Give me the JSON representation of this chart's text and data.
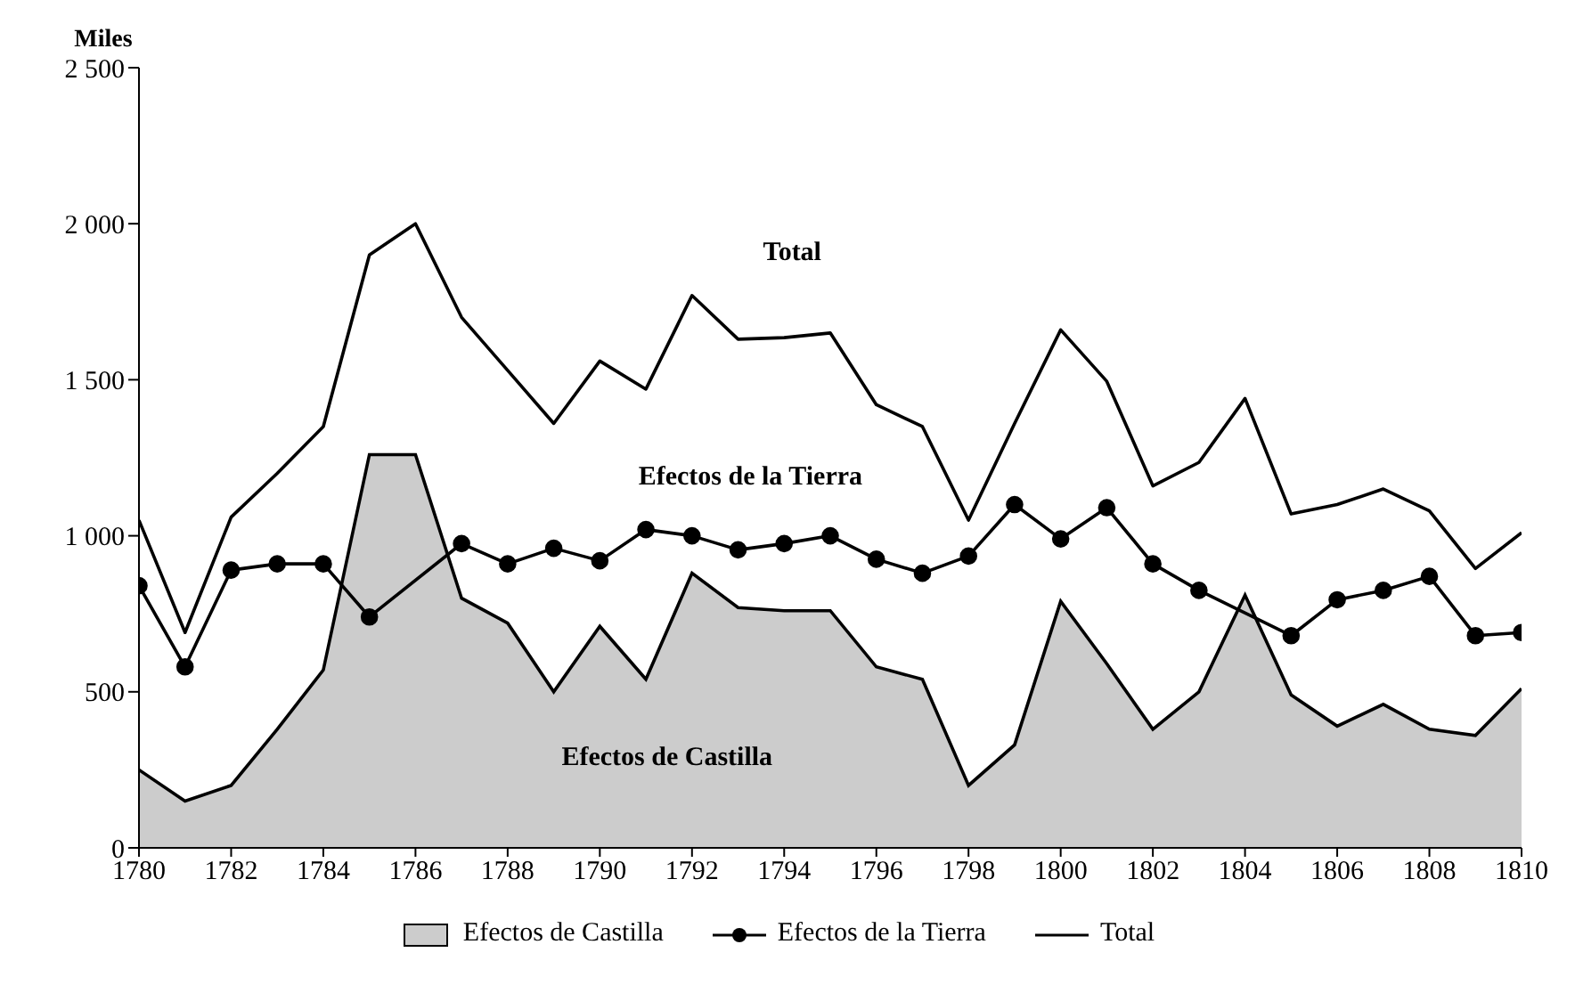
{
  "chart_data": {
    "type": "line",
    "ylabel": "Miles",
    "x": [
      1780,
      1781,
      1782,
      1783,
      1784,
      1785,
      1786,
      1787,
      1788,
      1789,
      1790,
      1791,
      1792,
      1793,
      1794,
      1795,
      1796,
      1797,
      1798,
      1799,
      1800,
      1801,
      1802,
      1803,
      1804,
      1805,
      1806,
      1807,
      1808,
      1809,
      1810
    ],
    "series": [
      {
        "name": "Efectos de Castilla",
        "type": "area",
        "color": "#cccccc",
        "marker": "none",
        "values": [
          250,
          150,
          200,
          380,
          570,
          1260,
          1260,
          800,
          720,
          500,
          710,
          540,
          880,
          770,
          760,
          760,
          580,
          540,
          200,
          330,
          790,
          590,
          380,
          500,
          810,
          490,
          390,
          460,
          380,
          360,
          510
        ]
      },
      {
        "name": "Efectos de la Tierra",
        "color": "#000000",
        "marker": "circle",
        "values": [
          840,
          580,
          890,
          910,
          910,
          740,
          null,
          975,
          910,
          960,
          920,
          1020,
          1000,
          955,
          975,
          1000,
          925,
          880,
          935,
          1100,
          990,
          1090,
          910,
          825,
          null,
          680,
          795,
          825,
          870,
          680,
          690
        ]
      },
      {
        "name": "Total",
        "color": "#000000",
        "marker": "none",
        "values": [
          1050,
          690,
          1060,
          1200,
          1350,
          1900,
          2000,
          1700,
          1530,
          1360,
          1560,
          1470,
          1770,
          1630,
          1635,
          1650,
          1420,
          1350,
          1050,
          1360,
          1660,
          1495,
          1160,
          1235,
          1440,
          1070,
          1100,
          1150,
          1080,
          895,
          1010
        ]
      }
    ],
    "xlim": [
      1780,
      1810
    ],
    "xticks": [
      1780,
      1782,
      1784,
      1786,
      1788,
      1790,
      1792,
      1794,
      1796,
      1798,
      1800,
      1802,
      1804,
      1806,
      1808,
      1810
    ],
    "ylim": [
      0,
      2500
    ],
    "yticks": [
      0,
      500,
      {
        "value": 1000,
        "label": "1 000"
      },
      {
        "value": 1500,
        "label": "1 500"
      },
      {
        "value": 2000,
        "label": "2 000"
      },
      {
        "value": 2500,
        "label": "2 500"
      }
    ],
    "annotations": [
      "Total",
      "Efectos de la Tierra",
      "Efectos de Castilla"
    ],
    "grid": false,
    "legend": "bottom"
  }
}
